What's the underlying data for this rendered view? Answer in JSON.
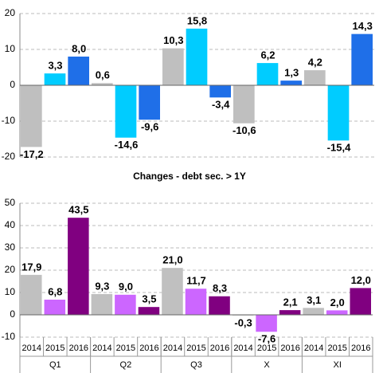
{
  "chart_data": [
    {
      "type": "bar",
      "categories": [
        "Q1",
        "Q2",
        "Q3",
        "X",
        "XI"
      ],
      "series": [
        {
          "color": "#bfbfbf",
          "values": [
            -17.2,
            0.6,
            10.3,
            -10.6,
            4.2
          ],
          "value_labels": [
            "-17,2",
            "0,6",
            "10,3",
            "-10,6",
            "4,2"
          ]
        },
        {
          "color": "#00ccff",
          "values": [
            3.3,
            -14.6,
            15.8,
            6.2,
            -15.4
          ],
          "value_labels": [
            "3,3",
            "-14,6",
            "15,8",
            "6,2",
            "-15,4"
          ]
        },
        {
          "color": "#1f6fe8",
          "values": [
            8.0,
            -9.6,
            -3.4,
            1.3,
            14.3
          ],
          "value_labels": [
            "8,0",
            "-9,6",
            "-3,4",
            "1,3",
            "14,3"
          ]
        }
      ],
      "ylim": [
        -20,
        20
      ],
      "yticks": [
        -20,
        -10,
        0,
        10,
        20
      ],
      "grid": true
    },
    {
      "type": "bar",
      "title": "Changes - debt sec. > 1Y",
      "categories": [
        "Q1",
        "Q2",
        "Q3",
        "X",
        "XI"
      ],
      "subcategories": [
        "2014",
        "2015",
        "2016"
      ],
      "series": [
        {
          "color": "#c0c0c0",
          "values": [
            17.9,
            9.3,
            21.0,
            -0.3,
            3.1
          ],
          "value_labels": [
            "17,9",
            "9,3",
            "21,0",
            "-0,3",
            "3,1"
          ]
        },
        {
          "color": "#cc66ff",
          "values": [
            6.8,
            9.0,
            11.7,
            -7.6,
            2.0
          ],
          "value_labels": [
            "6,8",
            "9,0",
            "11,7",
            "-7,6",
            "2,0"
          ]
        },
        {
          "color": "#800080",
          "values": [
            43.5,
            3.5,
            8.3,
            2.1,
            12.0
          ],
          "value_labels": [
            "43,5",
            "3,5",
            "8,3",
            "2,1",
            "12,0"
          ]
        }
      ],
      "ylim": [
        -10,
        50
      ],
      "yticks": [
        -10,
        0,
        10,
        20,
        30,
        40,
        50
      ],
      "grid": true
    }
  ]
}
